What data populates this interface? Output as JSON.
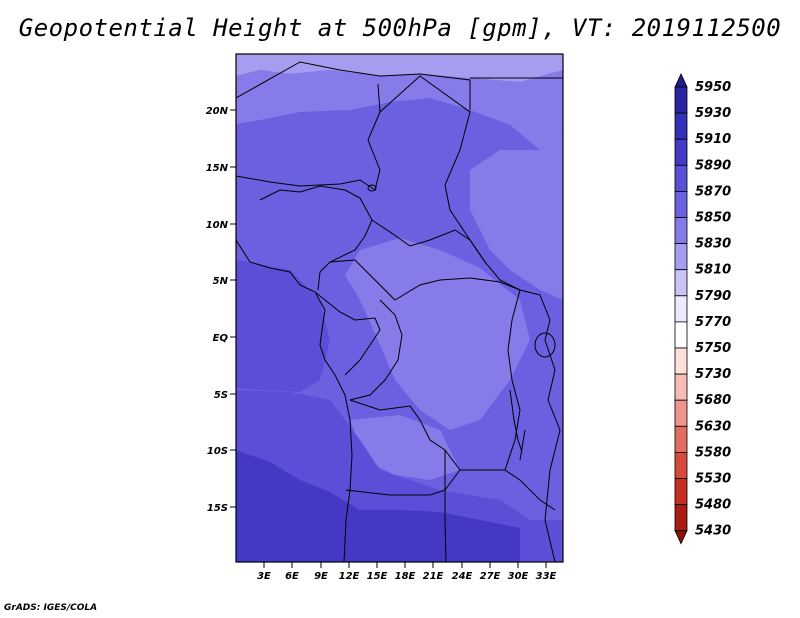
{
  "title": "Geopotential Height at 500hPa [gpm], VT: 2019112500",
  "credit": "GrADS: IGES/COLA",
  "lat_ticks": [
    "20N",
    "15N",
    "10N",
    "5N",
    "EQ",
    "5S",
    "10S",
    "15S"
  ],
  "lon_ticks": [
    "3E",
    "6E",
    "9E",
    "12E",
    "15E",
    "18E",
    "21E",
    "24E",
    "27E",
    "30E",
    "33E"
  ],
  "legend": {
    "levels": [
      "5950",
      "5930",
      "5910",
      "5890",
      "5870",
      "5850",
      "5830",
      "5810",
      "5790",
      "5770",
      "5750",
      "5730",
      "5680",
      "5630",
      "5580",
      "5530",
      "5480",
      "5430"
    ],
    "colors": [
      "#1e1a8c",
      "#2a26a2",
      "#3530b8",
      "#4339c5",
      "#5a4fd6",
      "#6b60e0",
      "#857be9",
      "#a59ef0",
      "#c8c4f7",
      "#eceaff",
      "#ffffff",
      "#fde0dc",
      "#f7bcb4",
      "#ee968b",
      "#e26d60",
      "#d54a3c",
      "#c42f22",
      "#a91c12",
      "#8a120b"
    ]
  },
  "field_colors": {
    "darkest": "#4339c5",
    "dark": "#5a4fd6",
    "mid": "#6b60e0",
    "light": "#857be9",
    "pale": "#a59ef0"
  }
}
